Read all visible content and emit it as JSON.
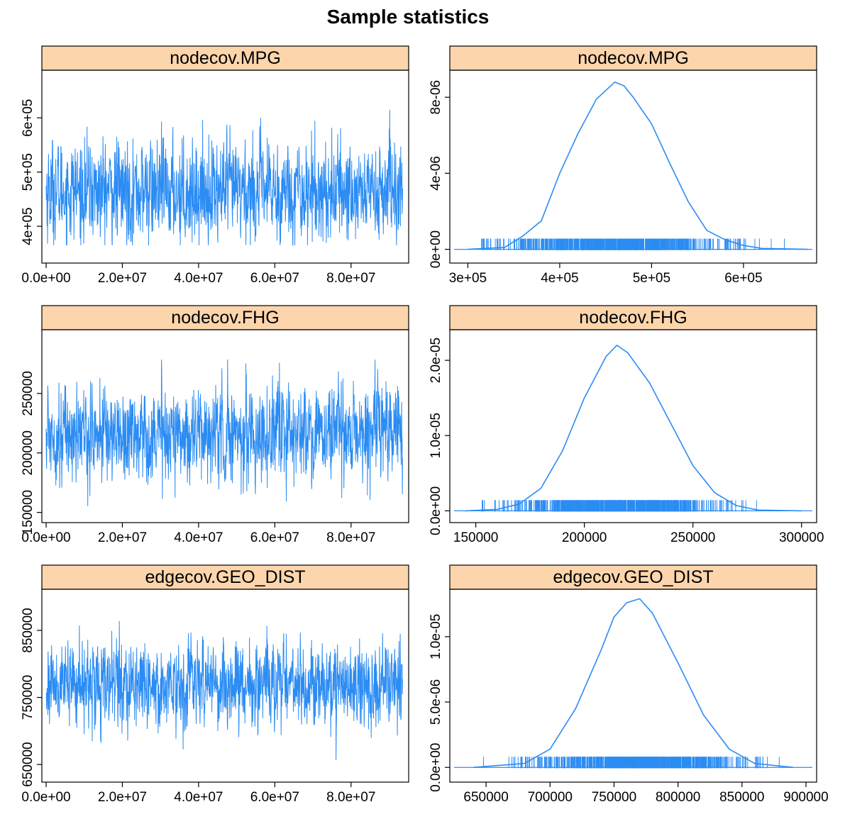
{
  "title": "Sample statistics",
  "colors": {
    "line": "#2b8cf3",
    "strip": "#fcd5ac",
    "axis": "#000000"
  },
  "chart_data": [
    {
      "type": "line",
      "title": "nodecov.MPG",
      "xlim": [
        0,
        94000000
      ],
      "ylim": [
        340000,
        680000
      ],
      "xticks": [
        0,
        20000000,
        40000000,
        60000000,
        80000000
      ],
      "xtick_labels": [
        "0.0e+00",
        "2.0e+07",
        "4.0e+07",
        "6.0e+07",
        "8.0e+07"
      ],
      "yticks": [
        400000,
        500000,
        600000
      ],
      "ytick_labels": [
        "4e+05",
        "5e+05",
        "6e+05"
      ],
      "summary": {
        "mean": 465000,
        "sd": 45000,
        "min": 365000,
        "max": 650000
      },
      "series": [
        {
          "values": []
        }
      ]
    },
    {
      "type": "area",
      "title": "nodecov.MPG",
      "xlim": [
        285000,
        675000
      ],
      "ylim": [
        -5e-07,
        9.2e-06
      ],
      "xticks": [
        300000,
        400000,
        500000,
        600000
      ],
      "xtick_labels": [
        "3e+05",
        "4e+05",
        "5e+05",
        "6e+05"
      ],
      "yticks": [
        0,
        4e-06,
        8e-06
      ],
      "ytick_labels": [
        "0e+00",
        "4e-06",
        "8e-06"
      ],
      "x": [
        300000,
        340000,
        360000,
        380000,
        400000,
        420000,
        440000,
        460000,
        470000,
        480000,
        500000,
        520000,
        540000,
        560000,
        580000,
        600000,
        620000,
        670000
      ],
      "y": [
        0,
        1e-07,
        7e-07,
        1.5e-06,
        4e-06,
        6.1e-06,
        7.9e-06,
        8.8e-06,
        8.6e-06,
        8e-06,
        6.6e-06,
        4.5e-06,
        2.5e-06,
        1e-06,
        5e-07,
        2e-07,
        5e-08,
        0
      ],
      "rug": {
        "min": 315000,
        "max": 650000
      }
    },
    {
      "type": "line",
      "title": "nodecov.FHG",
      "xlim": [
        0,
        94000000
      ],
      "ylim": [
        145000,
        300000
      ],
      "xticks": [
        0,
        20000000,
        40000000,
        60000000,
        80000000
      ],
      "xtick_labels": [
        "0.0e+00",
        "2.0e+07",
        "4.0e+07",
        "6.0e+07",
        "8.0e+07"
      ],
      "yticks": [
        150000,
        200000,
        250000
      ],
      "ytick_labels": [
        "150000",
        "200000",
        "250000"
      ],
      "summary": {
        "mean": 216000,
        "sd": 19000,
        "min": 153000,
        "max": 290000
      },
      "series": [
        {
          "values": []
        }
      ]
    },
    {
      "type": "area",
      "title": "nodecov.FHG",
      "xlim": [
        140000,
        305000
      ],
      "ylim": [
        -1e-06,
        2.35e-05
      ],
      "xticks": [
        150000,
        200000,
        250000,
        300000
      ],
      "xtick_labels": [
        "150000",
        "200000",
        "250000",
        "300000"
      ],
      "yticks": [
        0,
        1e-05,
        2e-05
      ],
      "ytick_labels": [
        "0.0e+00",
        "1.0e-05",
        "2.0e-05"
      ],
      "x": [
        145000,
        160000,
        170000,
        180000,
        190000,
        200000,
        210000,
        215000,
        220000,
        230000,
        240000,
        250000,
        260000,
        270000,
        280000,
        300000
      ],
      "y": [
        0,
        2e-07,
        9e-07,
        3e-06,
        8e-06,
        1.5e-05,
        2.05e-05,
        2.2e-05,
        2.1e-05,
        1.7e-05,
        1.15e-05,
        6e-06,
        2.4e-06,
        7e-07,
        1e-07,
        0
      ],
      "rug": {
        "min": 153000,
        "max": 292000
      }
    },
    {
      "type": "line",
      "title": "edgecov.GEO_DIST",
      "xlim": [
        0,
        94000000
      ],
      "ylim": [
        630000,
        905000
      ],
      "xticks": [
        0,
        20000000,
        40000000,
        60000000,
        80000000
      ],
      "xtick_labels": [
        "0.0e+00",
        "2.0e+07",
        "4.0e+07",
        "6.0e+07",
        "8.0e+07"
      ],
      "yticks": [
        650000,
        750000,
        850000
      ],
      "ytick_labels": [
        "650000",
        "750000",
        "850000"
      ],
      "summary": {
        "mean": 770000,
        "sd": 30000,
        "min": 645000,
        "max": 880000
      },
      "series": [
        {
          "values": []
        }
      ]
    },
    {
      "type": "area",
      "title": "edgecov.GEO_DIST",
      "xlim": [
        625000,
        905000
      ],
      "ylim": [
        -8e-07,
        1.33e-05
      ],
      "xticks": [
        650000,
        700000,
        750000,
        800000,
        850000,
        900000
      ],
      "xtick_labels": [
        "650000",
        "700000",
        "750000",
        "800000",
        "850000",
        "900000"
      ],
      "yticks": [
        0,
        5e-06,
        1e-05
      ],
      "ytick_labels": [
        "0.0e+00",
        "5.0e-06",
        "1.0e-05"
      ],
      "x": [
        640000,
        680000,
        700000,
        720000,
        740000,
        750000,
        760000,
        770000,
        780000,
        800000,
        820000,
        840000,
        860000,
        890000
      ],
      "y": [
        0,
        3e-07,
        1.4e-06,
        4.5e-06,
        9e-06,
        1.15e-05,
        1.26e-05,
        1.29e-05,
        1.18e-05,
        8e-06,
        4e-06,
        1.4e-06,
        3e-07,
        0
      ],
      "rug": {
        "min": 648000,
        "max": 880000
      }
    }
  ]
}
